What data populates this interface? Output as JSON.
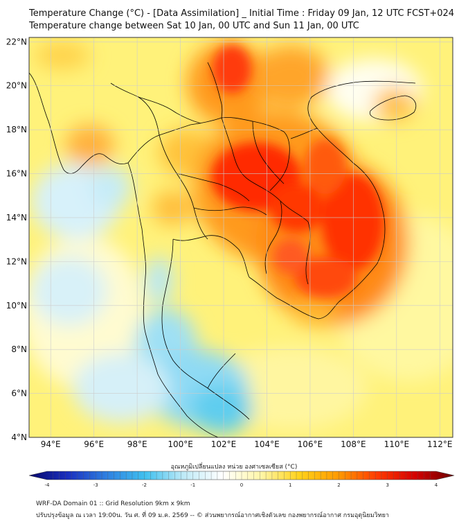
{
  "header": {
    "title_line1": "Temperature Change (°C) - [Data Assimilation] _ Initial Time : Friday 09 Jan, 12 UTC FCST+024",
    "title_line2": "Temperature change between Sat 10 Jan, 00 UTC and Sun 11 Jan, 00 UTC"
  },
  "map": {
    "lat_labels": [
      "22°N",
      "20°N",
      "18°N",
      "16°N",
      "14°N",
      "12°N",
      "10°N",
      "8°N",
      "6°N",
      "4°N"
    ],
    "lon_labels": [
      "94°E",
      "96°E",
      "98°E",
      "100°E",
      "102°E",
      "104°E",
      "106°E",
      "108°E",
      "110°E",
      "112°E"
    ],
    "lat_range": [
      4,
      22.2
    ],
    "lon_range": [
      93,
      112.6
    ],
    "grid": true
  },
  "colorbar": {
    "label": "อุณหภูมิเปลี่ยนแปลง หน่วย องศาเซลเซียส (°C)",
    "ticks": [
      "-4",
      "-3",
      "-2",
      "-1",
      "0",
      "1",
      "2",
      "3",
      "4"
    ],
    "min": -4,
    "max": 4,
    "colors": [
      "#08086b",
      "#1a2fbf",
      "#2f7fe0",
      "#3fc0ef",
      "#bfeaf7",
      "#ffffff",
      "#fff6a8",
      "#ffd21a",
      "#ff9a00",
      "#ff3b00",
      "#d40000",
      "#6b0000"
    ]
  },
  "footer": {
    "line1": "WRF-DA Domain 01 :: Grid Resolution 9km x 9km",
    "line2": "ปรับปรุงข้อมูล ณ เวลา 19:00น. วัน ศ. ที่ 09 ม.ค. 2569 -- © ส่วนพยากรณ์อากาศเชิงตัวเลข กองพยากรณ์อากาศ กรมอุตุนิยมวิทยา"
  }
}
